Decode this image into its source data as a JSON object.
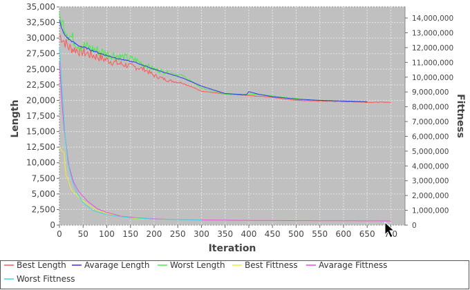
{
  "chart_data": {
    "type": "line",
    "xlabel": "Iteration",
    "ylabel": "Length",
    "y2label": "Fittness",
    "xlim": [
      0,
      730
    ],
    "ylim": [
      0,
      35000
    ],
    "y2lim": [
      0,
      14750000
    ],
    "x_ticks": [
      0,
      50,
      100,
      150,
      200,
      250,
      300,
      350,
      400,
      450,
      500,
      550,
      600,
      650,
      700
    ],
    "x_tick_labels": [
      "0",
      "50",
      "100",
      "150",
      "200",
      "250",
      "300",
      "350",
      "400",
      "450",
      "500",
      "550",
      "600",
      "650",
      "7 0"
    ],
    "y_ticks": [
      0,
      2500,
      5000,
      7500,
      10000,
      12500,
      15000,
      17500,
      20000,
      22500,
      25000,
      27500,
      30000,
      32500,
      35000
    ],
    "y_tick_labels": [
      "0",
      "2,500",
      "5,000",
      "7,500",
      "10,000",
      "12,500",
      "15,000",
      "17,500",
      "20,000",
      "22,500",
      "25,000",
      "27,500",
      "30,000",
      "32,500",
      "35,000"
    ],
    "y2_ticks": [
      0,
      1000000,
      2000000,
      3000000,
      4000000,
      5000000,
      6000000,
      7000000,
      8000000,
      9000000,
      10000000,
      11000000,
      12000000,
      13000000,
      14000000
    ],
    "y2_tick_labels": [
      "0",
      "1,000,000",
      "2,000,000",
      "3,000,000",
      "4,000,000",
      "5,000,000",
      "6,000,000",
      "7,000,000",
      "8,000,000",
      "9,000,000",
      "10,000,000",
      "11,000,000",
      "12,000,000",
      "13,000,000",
      "14,000,000"
    ],
    "grid": true,
    "background": "#c0c0c0",
    "legend_position": "bottom",
    "series": [
      {
        "name": "Best Length",
        "axis": "left",
        "color": "#ff5555",
        "noise": 1000,
        "x": [
          0,
          10,
          20,
          40,
          60,
          80,
          100,
          120,
          150,
          180,
          200,
          230,
          260,
          300,
          350,
          400,
          450,
          500,
          550,
          600,
          650,
          700
        ],
        "y": [
          30500,
          29500,
          28500,
          28000,
          27500,
          27000,
          26500,
          26000,
          25500,
          25000,
          24000,
          23200,
          22800,
          21500,
          21000,
          20800,
          20500,
          20000,
          19900,
          19800,
          19700,
          19700
        ]
      },
      {
        "name": "Avarage Length",
        "axis": "left",
        "color": "#3333ee",
        "noise": 150,
        "x": [
          0,
          5,
          10,
          20,
          40,
          60,
          80,
          100,
          130,
          160,
          200,
          230,
          260,
          300,
          350,
          395,
          400,
          420,
          450,
          500,
          550,
          600,
          650
        ],
        "y": [
          32800,
          31500,
          30600,
          29800,
          28800,
          28300,
          27700,
          27200,
          26600,
          26100,
          25000,
          24300,
          23600,
          22300,
          21100,
          20900,
          21400,
          21000,
          20600,
          20200,
          20000,
          19900,
          19800
        ]
      },
      {
        "name": "Worst Length",
        "axis": "left",
        "color": "#44ee44",
        "noise": 1300,
        "x": [
          0,
          10,
          20,
          40,
          60,
          80,
          100,
          130,
          160,
          200,
          230,
          260,
          300,
          350,
          380,
          400,
          420,
          450,
          500,
          550,
          600,
          650
        ],
        "y": [
          33000,
          32000,
          30500,
          29000,
          28500,
          28000,
          27500,
          27000,
          26500,
          25000,
          24500,
          24000,
          22000,
          21000,
          21000,
          21000,
          21000,
          20700,
          20300,
          20000,
          19900,
          19800
        ]
      },
      {
        "name": "Best Fittness",
        "axis": "right",
        "color": "#eeee33",
        "noise": 0,
        "x": [
          0,
          5,
          10,
          13,
          17,
          25,
          40,
          60,
          80,
          100,
          130,
          160,
          200,
          250,
          300,
          400,
          500,
          600,
          700
        ],
        "y": [
          5300000,
          5000000,
          4900000,
          3400000,
          3200000,
          2400000,
          1900000,
          1400000,
          1000000,
          800000,
          600000,
          450000,
          400000,
          370000,
          340000,
          320000,
          300000,
          290000,
          280000
        ]
      },
      {
        "name": "Avarage Fittness",
        "axis": "right",
        "color": "#ee44ee",
        "noise": 0,
        "x": [
          0,
          3,
          6,
          10,
          15,
          20,
          30,
          40,
          60,
          80,
          100,
          130,
          160,
          200,
          250,
          300,
          400,
          500,
          600,
          700
        ],
        "y": [
          11000000,
          9500000,
          8000000,
          6500000,
          5200000,
          4000000,
          2900000,
          2300000,
          1600000,
          1100000,
          850000,
          600000,
          500000,
          420000,
          370000,
          340000,
          320000,
          300000,
          290000,
          280000
        ]
      },
      {
        "name": "Worst Fittness",
        "axis": "right",
        "color": "#33dddd",
        "noise": 0,
        "x": [
          0,
          2,
          5,
          8,
          12,
          18,
          25,
          35,
          50,
          70,
          100,
          150,
          200,
          300
        ],
        "y": [
          12000000,
          11000000,
          9500000,
          8000000,
          6000000,
          4200000,
          3200000,
          2300000,
          1500000,
          1000000,
          700000,
          500000,
          400000,
          350000
        ]
      }
    ]
  }
}
